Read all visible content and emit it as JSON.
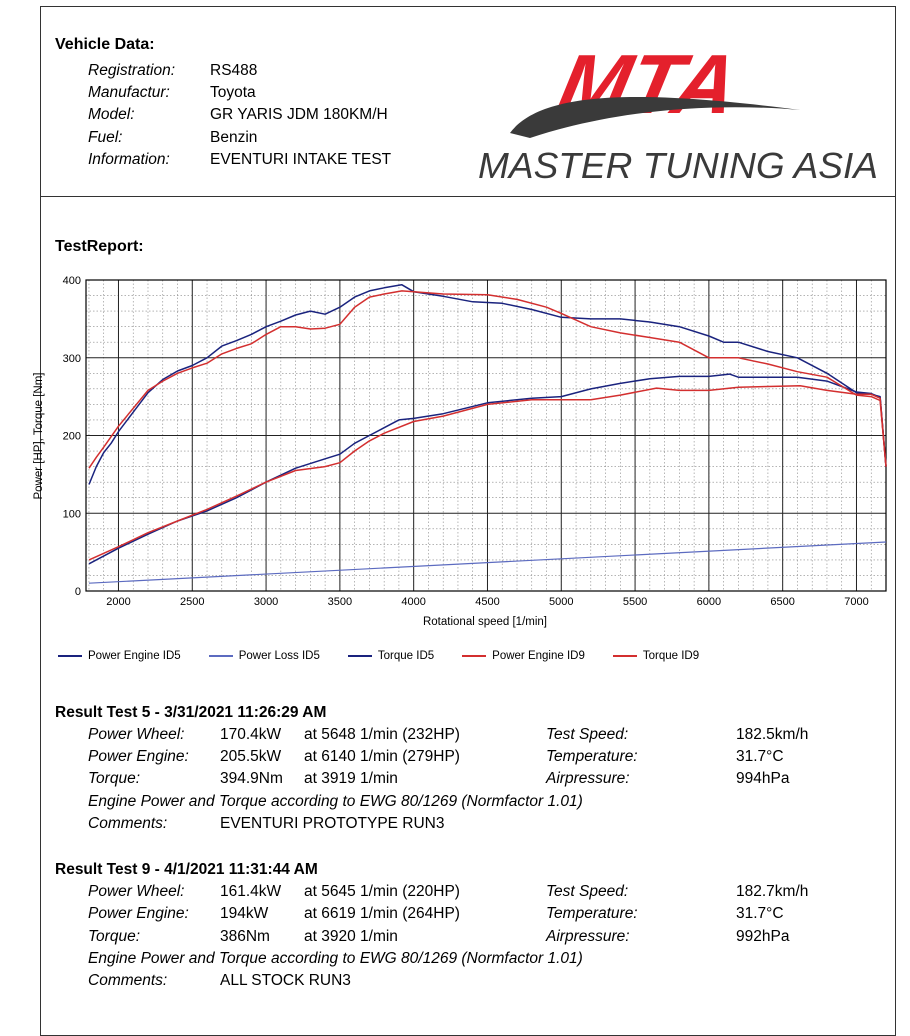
{
  "vehicle": {
    "title": "Vehicle Data:",
    "rows": [
      {
        "label": "Registration:",
        "value": "RS488"
      },
      {
        "label": "Manufactur:",
        "value": "Toyota"
      },
      {
        "label": "Model:",
        "value": "GR YARIS JDM 180KM/H"
      },
      {
        "label": "Fuel:",
        "value": "Benzin"
      },
      {
        "label": "Information:",
        "value": "EVENTURI INTAKE TEST"
      }
    ]
  },
  "logo": {
    "main": "MTA",
    "sub": "MASTER TUNING ASIA",
    "red": "#e4202c",
    "gray": "#3a3a3a"
  },
  "report_title": "TestReport:",
  "chart_data": {
    "type": "line",
    "xlabel": "Rotational  speed [1/min]",
    "ylabel": "Power [HP], Torque [Nm]",
    "xlim": [
      1780,
      7200
    ],
    "ylim": [
      0,
      400
    ],
    "xticks": [
      2000,
      2500,
      3000,
      3500,
      4000,
      4500,
      5000,
      5500,
      6000,
      6500,
      7000
    ],
    "yticks": [
      0,
      100,
      200,
      300,
      400
    ],
    "grid": true,
    "legend_position": "bottom",
    "series": [
      {
        "name": "Power Engine ID5",
        "color": "#1a237e",
        "x": [
          1800,
          2000,
          2200,
          2400,
          2600,
          2800,
          3000,
          3200,
          3400,
          3500,
          3600,
          3700,
          3800,
          3900,
          4000,
          4200,
          4500,
          4800,
          5000,
          5200,
          5400,
          5600,
          5800,
          6000,
          6140,
          6200,
          6400,
          6600,
          6800,
          7000,
          7100,
          7160,
          7200
        ],
        "y": [
          35,
          55,
          73,
          90,
          103,
          120,
          140,
          158,
          170,
          176,
          190,
          200,
          210,
          220,
          222,
          228,
          242,
          248,
          250,
          260,
          267,
          273,
          276,
          276,
          279,
          275,
          275,
          275,
          270,
          256,
          254,
          249,
          160
        ]
      },
      {
        "name": "Power Loss ID5",
        "color": "#5c6bc0",
        "x": [
          1800,
          7200
        ],
        "y": [
          10,
          63
        ]
      },
      {
        "name": "Torque ID5",
        "color": "#1a237e",
        "x": [
          1800,
          1850,
          1900,
          1950,
          2000,
          2100,
          2200,
          2300,
          2400,
          2500,
          2600,
          2700,
          2800,
          2900,
          3000,
          3100,
          3200,
          3300,
          3400,
          3500,
          3600,
          3700,
          3800,
          3919,
          4000,
          4200,
          4400,
          4600,
          4800,
          5000,
          5200,
          5400,
          5600,
          5800,
          6000,
          6100,
          6200,
          6400,
          6600,
          6800,
          7000,
          7100,
          7160,
          7200
        ],
        "y": [
          137,
          160,
          178,
          190,
          205,
          230,
          255,
          272,
          283,
          290,
          300,
          315,
          322,
          330,
          340,
          347,
          355,
          360,
          356,
          365,
          378,
          386,
          390,
          394,
          385,
          379,
          372,
          370,
          362,
          352,
          350,
          350,
          346,
          340,
          328,
          320,
          320,
          308,
          300,
          280,
          255,
          253,
          250,
          160
        ]
      },
      {
        "name": "Power Engine ID9",
        "color": "#d32f2f",
        "x": [
          1800,
          2000,
          2200,
          2400,
          2600,
          2800,
          3000,
          3200,
          3400,
          3500,
          3600,
          3700,
          3800,
          4000,
          4200,
          4500,
          4800,
          5000,
          5200,
          5400,
          5645,
          5800,
          6000,
          6200,
          6400,
          6619,
          6800,
          7000,
          7100,
          7160,
          7200
        ],
        "y": [
          40,
          57,
          75,
          90,
          105,
          122,
          140,
          155,
          160,
          165,
          180,
          193,
          203,
          218,
          225,
          240,
          246,
          246,
          246,
          252,
          261,
          258,
          258,
          262,
          263,
          264,
          258,
          253,
          253,
          248,
          160
        ]
      },
      {
        "name": "Torque ID9",
        "color": "#d32f2f",
        "x": [
          1800,
          1850,
          1900,
          2000,
          2100,
          2200,
          2300,
          2400,
          2500,
          2600,
          2700,
          2800,
          2900,
          3000,
          3100,
          3200,
          3300,
          3400,
          3500,
          3600,
          3700,
          3800,
          3920,
          4000,
          4200,
          4500,
          4700,
          4900,
          5000,
          5200,
          5400,
          5600,
          5800,
          6000,
          6200,
          6400,
          6600,
          6800,
          7000,
          7100,
          7160,
          7200
        ],
        "y": [
          158,
          172,
          185,
          212,
          235,
          258,
          270,
          280,
          287,
          293,
          305,
          312,
          318,
          330,
          340,
          340,
          337,
          338,
          343,
          365,
          378,
          382,
          386,
          385,
          382,
          381,
          375,
          365,
          357,
          340,
          332,
          326,
          320,
          300,
          300,
          292,
          282,
          275,
          252,
          250,
          245,
          160
        ]
      }
    ]
  },
  "results": [
    {
      "title": "Result Test 5 - 3/31/2021 11:26:29 AM",
      "rows": [
        {
          "label": "Power Wheel:",
          "value": "170.4kW",
          "at": "at 5648 1/min (232HP)",
          "key": "Test Speed:",
          "kval": "182.5km/h"
        },
        {
          "label": "Power Engine:",
          "value": "205.5kW",
          "at": "at 6140 1/min (279HP)",
          "key": "Temperature:",
          "kval": "31.7°C"
        },
        {
          "label": "Torque:",
          "value": "394.9Nm",
          "at": "at 3919 1/min",
          "key": "Airpressure:",
          "kval": "994hPa"
        }
      ],
      "note": "Engine Power and Torque according to EWG 80/1269 (Normfactor 1.01)",
      "comments_label": "Comments:",
      "comments": "EVENTURI PROTOTYPE RUN3"
    },
    {
      "title": "Result Test 9 - 4/1/2021 11:31:44 AM",
      "rows": [
        {
          "label": "Power Wheel:",
          "value": "161.4kW",
          "at": "at 5645 1/min (220HP)",
          "key": "Test Speed:",
          "kval": "182.7km/h"
        },
        {
          "label": "Power Engine:",
          "value": "194kW",
          "at": "at 6619 1/min (264HP)",
          "key": "Temperature:",
          "kval": "31.7°C"
        },
        {
          "label": "Torque:",
          "value": "386Nm",
          "at": "at 3920 1/min",
          "key": "Airpressure:",
          "kval": "992hPa"
        }
      ],
      "note": "Engine Power and Torque according to EWG 80/1269 (Normfactor 1.01)",
      "comments_label": "Comments:",
      "comments": "ALL STOCK RUN3"
    }
  ]
}
